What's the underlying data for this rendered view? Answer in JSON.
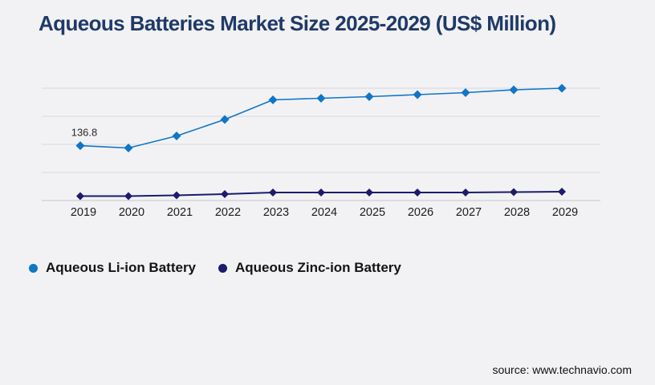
{
  "page": {
    "source": "source: www.technavio.com",
    "background_color": "#f2f2f4",
    "title_color": "#1f3a68"
  },
  "chart_data": {
    "type": "line",
    "title": "Aqueous Batteries Market Size 2025-2029 (US$ Million)",
    "categories": [
      "2019",
      "2020",
      "2021",
      "2022",
      "2023",
      "2024",
      "2025",
      "2026",
      "2027",
      "2028",
      "2029"
    ],
    "series": [
      {
        "name": "Aqueous Li-ion Battery",
        "color": "#0f76c8",
        "marker": "diamond",
        "values": [
          136.8,
          131,
          161,
          202,
          251,
          255,
          259,
          264,
          269,
          276,
          280
        ]
      },
      {
        "name": "Aqueous Zinc-ion Battery",
        "color": "#1c1b6e",
        "marker": "diamond",
        "values": [
          11,
          11,
          13,
          16,
          20,
          20,
          20,
          20,
          20,
          21,
          22
        ]
      }
    ],
    "annotations": [
      {
        "series_index": 0,
        "category": "2019",
        "text": "136.8"
      }
    ],
    "xlabel": "",
    "ylabel": "",
    "ylim": [
      0,
      280
    ],
    "y_axis_labels_visible": false,
    "grid": "horizontal",
    "gridline_values": [
      0,
      70,
      140,
      210,
      280
    ],
    "legend_position": "bottom-left",
    "tick_color": "#1c1c1c",
    "grid_color": "#d8d8db",
    "axis_color": "#c7c7cb"
  }
}
